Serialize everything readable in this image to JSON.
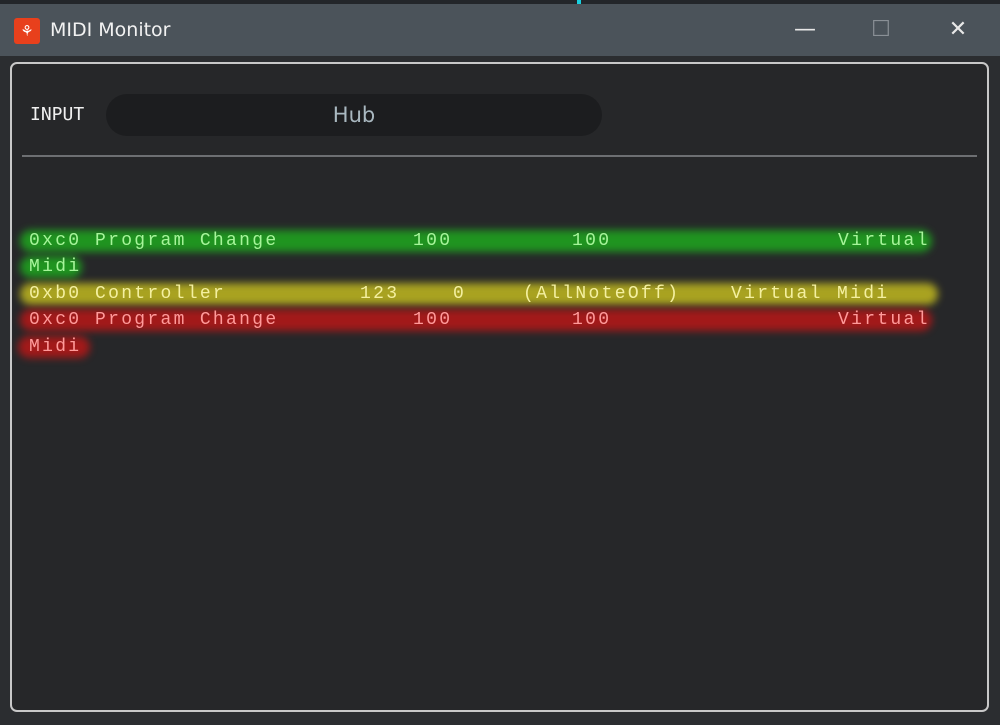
{
  "window": {
    "title": "MIDI Monitor",
    "icon": "app-icon",
    "minimize": "—",
    "maximize": "☐",
    "close": "✕"
  },
  "input": {
    "label": "INPUT",
    "value": "Hub"
  },
  "colors": {
    "green": "#1fa01f",
    "yellow": "#b8b020",
    "red": "#b01818"
  },
  "log": [
    {
      "status": "0xc0",
      "type": "Program Change",
      "data1": "100",
      "data2": "100",
      "extra": "",
      "port_a": "Virtual",
      "port_b": "Midi",
      "highlight": "green"
    },
    {
      "status": "0xb0",
      "type": "Controller",
      "data1": "123",
      "data2": "0",
      "extra": "(AllNoteOff)",
      "port_a": "Virtual",
      "port_b": "Midi",
      "highlight": "yellow"
    },
    {
      "status": "0xc0",
      "type": "Program Change",
      "data1": "100",
      "data2": "100",
      "extra": "",
      "port_a": "Virtual",
      "port_b": "Midi",
      "highlight": "red"
    }
  ]
}
